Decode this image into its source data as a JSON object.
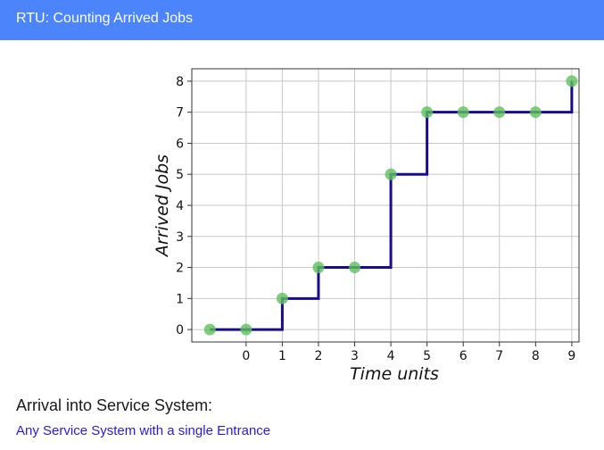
{
  "app": {
    "title": "RTU: Counting Arrived Jobs"
  },
  "section": {
    "heading": "Arrival into Service System:",
    "link_text": "Any Service System with a single Entrance"
  },
  "colors": {
    "header_bg": "#4b84fb",
    "step_line": "#1a0a8c",
    "point": "#5cc05c",
    "link": "#2a1ae0"
  },
  "chart_data": {
    "type": "line",
    "xlabel": "Time units",
    "ylabel": "Arrived Jobs",
    "x_ticks": [
      0,
      1,
      2,
      3,
      4,
      5,
      6,
      7,
      8,
      9
    ],
    "y_ticks": [
      0,
      1,
      2,
      3,
      4,
      5,
      6,
      7,
      8
    ],
    "xlim": [
      -1.5,
      9.2
    ],
    "ylim": [
      -0.4,
      8.4
    ],
    "grid": true,
    "series": [
      {
        "style": "step",
        "x": [
          -1,
          0,
          1,
          2,
          3,
          4,
          5,
          6,
          7,
          8,
          9
        ],
        "y": [
          0,
          0,
          1,
          2,
          2,
          5,
          7,
          7,
          7,
          7,
          8
        ]
      }
    ]
  }
}
